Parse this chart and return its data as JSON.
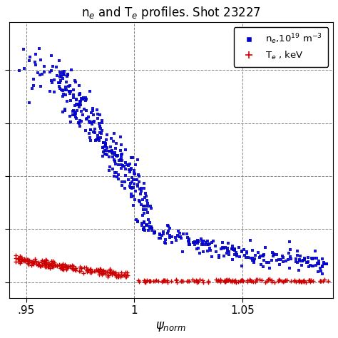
{
  "title": "n$_e$ and T$_e$ profiles. Shot 23227",
  "xlabel": "$\\psi_{norm}$",
  "xlim": [
    0.942,
    1.092
  ],
  "ylim": [
    -0.6,
    9.8
  ],
  "xticks": [
    0.95,
    1.0,
    1.05
  ],
  "xticklabels": [
    ".95",
    "1",
    "1.05"
  ],
  "grid_color": "#888888",
  "background": "#ffffff",
  "ne_color": "#0000cc",
  "Te_color": "#cc0000",
  "legend_ne": "n$_e$,10$^{19}$ m$^{-3}$",
  "legend_Te": "T$_e$ , keV",
  "yticks": [
    0,
    2,
    4,
    6,
    8
  ],
  "n_ne_inside": 300,
  "n_ne_outside": 220,
  "n_Te_inside": 190,
  "n_Te_outside": 130
}
